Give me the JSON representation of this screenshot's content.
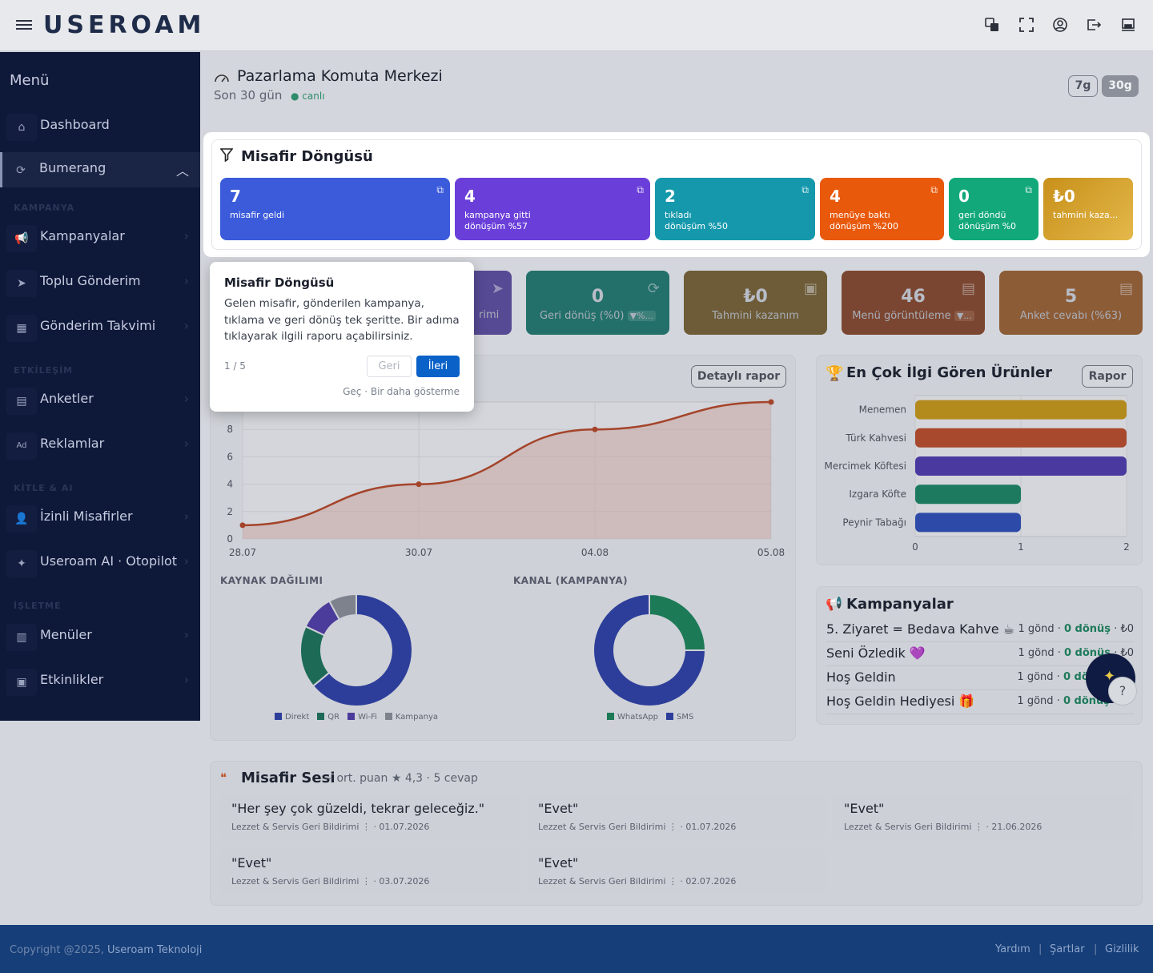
{
  "header": {
    "logo": "USEROAM",
    "icons": [
      "translate-icon",
      "fullscreen-icon",
      "user-icon",
      "logout-icon",
      "laptop-icon"
    ]
  },
  "sidebar": {
    "title": "Menü",
    "items": [
      {
        "label": "Dashboard",
        "icon": "home-icon"
      },
      {
        "label": "Bumerang",
        "icon": "refresh-icon"
      },
      {
        "section": "KAMPANYA"
      },
      {
        "label": "Kampanyalar",
        "icon": "megaphone-icon"
      },
      {
        "label": "Toplu Gönderim",
        "icon": "send-icon"
      },
      {
        "label": "Gönderim Takvimi",
        "icon": "calendar-icon"
      },
      {
        "section": "ETKİLEŞİM"
      },
      {
        "label": "Anketler",
        "icon": "clipboard-icon"
      },
      {
        "label": "Reklamlar",
        "icon": "ad-icon"
      },
      {
        "section": "KİTLE & AI"
      },
      {
        "label": "İzinli Misafirler",
        "icon": "user-check-icon"
      },
      {
        "label": "Useroam AI · Otopilot",
        "icon": "sparkle-icon"
      },
      {
        "section": "İŞLETME"
      },
      {
        "label": "Menüler",
        "icon": "menu-book-icon"
      },
      {
        "label": "Etkinlikler",
        "icon": "event-icon"
      }
    ]
  },
  "page": {
    "title": "Pazarlama Komuta Merkezi",
    "subtitle": "Son 30 gün",
    "live": "canlı",
    "range_7": "7g",
    "range_30": "30g"
  },
  "funnel": {
    "title": "Misafir Döngüsü",
    "tiles": [
      {
        "value": "7",
        "label": "misafir geldi",
        "sub": "",
        "color": "#3b5bdb"
      },
      {
        "value": "4",
        "label": "kampanya gitti",
        "sub": "dönüşüm %57",
        "color": "#6a3fd9"
      },
      {
        "value": "2",
        "label": "tıkladı",
        "sub": "dönüşüm %50",
        "color": "#1598ac"
      },
      {
        "value": "4",
        "label": "menüye baktı",
        "sub": "dönüşüm %200",
        "color": "#e8590c"
      },
      {
        "value": "0",
        "label": "geri döndü",
        "sub": "dönüşüm %0",
        "color": "#12a87a"
      },
      {
        "value": "₺0",
        "label": "tahmini kaza...",
        "sub": "",
        "color": "#d19a1a"
      }
    ]
  },
  "kpis": [
    {
      "value": "",
      "label": "rimi",
      "color": "#5a4a9a"
    },
    {
      "value": "0",
      "label": "Geri dönüş (%0)",
      "badge": "▼%...",
      "color": "#1f6b64"
    },
    {
      "value": "₺0",
      "label": "Tahmini kazanım",
      "color": "#6b5a35"
    },
    {
      "value": "46",
      "label": "Menü görüntüleme",
      "badge": "▼...",
      "color": "#7a4530"
    },
    {
      "value": "5",
      "label": "Anket cevabı (%63)",
      "color": "#8a5a35"
    }
  ],
  "trend": {
    "button": "Detaylı rapor",
    "source_label": "KAYNAK DAĞILIMI",
    "channel_label": "KANAL (KAMPANYA)"
  },
  "chart_data": [
    {
      "type": "area",
      "x": [
        "28.07",
        "30.07",
        "04.08",
        "05.08"
      ],
      "values": [
        1,
        4,
        8,
        10
      ],
      "ylim": [
        0,
        10
      ],
      "yticks": [
        0,
        2,
        4,
        6,
        8
      ],
      "color": "#a4442a"
    },
    {
      "type": "pie",
      "title": "KAYNAK DAĞILIMI",
      "labels": [
        "Direkt",
        "QR",
        "Wi-Fi",
        "Kampanya"
      ],
      "values": [
        64,
        18,
        10,
        8
      ],
      "colors": [
        "#2d3e9a",
        "#1d6b57",
        "#4b3b9a",
        "#7e828d"
      ]
    },
    {
      "type": "pie",
      "title": "KANAL (KAMPANYA)",
      "labels": [
        "WhatsApp",
        "SMS"
      ],
      "values": [
        25,
        75
      ],
      "colors": [
        "#1d7a57",
        "#2d3e9a"
      ]
    },
    {
      "type": "bar",
      "title": "En Çok İlgi Gören Ürünler",
      "categories": [
        "Menemen",
        "Türk Kahvesi",
        "Mercimek Köftesi",
        "Izgara Köfte",
        "Peynir Tabağı"
      ],
      "values": [
        2,
        2,
        2,
        1,
        1
      ],
      "xlim": [
        0,
        2
      ],
      "xticks": [
        0,
        1,
        2
      ],
      "colors": [
        "#b38a1c",
        "#a8482c",
        "#4a3aa0",
        "#1d7a5f",
        "#2e4aa8"
      ]
    }
  ],
  "products": {
    "title": "En Çok İlgi Gören Ürünler",
    "button": "Rapor"
  },
  "campaigns": {
    "title": "Kampanyalar",
    "rows": [
      {
        "name": "5. Ziyaret = Bedava Kahve ☕",
        "sent": "1 gönd ·",
        "conv": "0 dönüş",
        "earn": "· ₺0"
      },
      {
        "name": "Seni Özledik 💜",
        "sent": "1 gönd ·",
        "conv": "0 dönüş",
        "earn": "· ₺0"
      },
      {
        "name": "Hoş Geldin",
        "sent": "1 gönd ·",
        "conv": "0 dönüş",
        "earn": ""
      },
      {
        "name": "Hoş Geldin Hediyesi 🎁",
        "sent": "1 gönd ·",
        "conv": "0 dönüş",
        "earn": ""
      }
    ]
  },
  "voice": {
    "title": "Misafir Sesi",
    "summary": "— ort. puan ★ 4,3 · 5 cevap",
    "cards": [
      {
        "quote": "\"Her şey çok güzeldi, tekrar geleceğiz.\"",
        "meta": "Lezzet & Servis Geri Bildirimi ⋮ · 01.07.2026"
      },
      {
        "quote": "\"Evet\"",
        "meta": "Lezzet & Servis Geri Bildirimi ⋮ · 01.07.2026"
      },
      {
        "quote": "\"Evet\"",
        "meta": "Lezzet & Servis Geri Bildirimi ⋮ · 21.06.2026"
      },
      {
        "quote": "\"Evet\"",
        "meta": "Lezzet & Servis Geri Bildirimi ⋮ · 03.07.2026"
      },
      {
        "quote": "\"Evet\"",
        "meta": "Lezzet & Servis Geri Bildirimi ⋮ · 02.07.2026"
      }
    ]
  },
  "footer": {
    "copyright": "Copyright @2025,",
    "company": "Useroam Teknoloji",
    "links": [
      "Yardım",
      "Şartlar",
      "Gizlilik"
    ]
  },
  "tour": {
    "title": "Misafir Döngüsü",
    "body": "Gelen misafir, gönderilen kampanya, tıklama ve geri dönüş tek şeritte. Bir adıma tıklayarak ilgili raporu açabilirsiniz.",
    "step": "1 / 5",
    "back": "Geri",
    "next": "İleri",
    "skip": "Geç · Bir daha gösterme"
  }
}
